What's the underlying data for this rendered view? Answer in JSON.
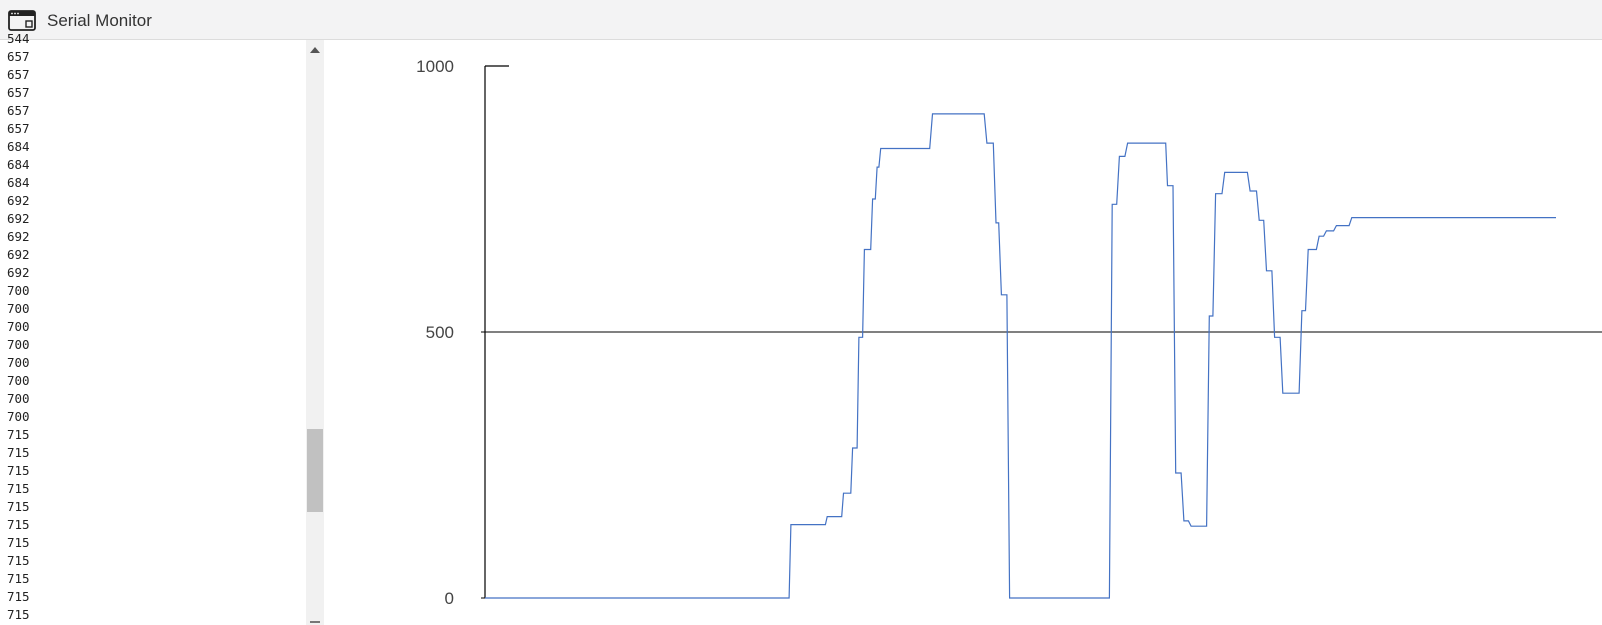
{
  "window": {
    "title": "Serial Monitor",
    "icon": "window-icon"
  },
  "serial_log": {
    "partial_top_line": "544",
    "lines": [
      "657",
      "657",
      "657",
      "657",
      "657",
      "684",
      "684",
      "684",
      "692",
      "692",
      "692",
      "692",
      "692",
      "700",
      "700",
      "700",
      "700",
      "700",
      "700",
      "700",
      "700",
      "715",
      "715",
      "715",
      "715",
      "715",
      "715",
      "715",
      "715",
      "715",
      "715",
      "715"
    ]
  },
  "plotter": {
    "y_ticks": [
      "0",
      "500",
      "1000"
    ],
    "line_color": "#4472c4",
    "axis_color": "#000000"
  },
  "chart_data": {
    "type": "line",
    "title": "",
    "xlabel": "",
    "ylabel": "",
    "ylim": [
      0,
      1000
    ],
    "y_ticks": [
      0,
      500,
      1000
    ],
    "grid": "horizontal line at 500",
    "x_unit": "sample index",
    "xlim": [
      0,
      1180
    ],
    "series": [
      {
        "points": [
          [
            0,
            0
          ],
          [
            335,
            0
          ],
          [
            337,
            138
          ],
          [
            375,
            138
          ],
          [
            377,
            153
          ],
          [
            393,
            153
          ],
          [
            395,
            197
          ],
          [
            403,
            197
          ],
          [
            405,
            282
          ],
          [
            410,
            282
          ],
          [
            412,
            490
          ],
          [
            416,
            490
          ],
          [
            418,
            655
          ],
          [
            425,
            655
          ],
          [
            427,
            750
          ],
          [
            430,
            750
          ],
          [
            432,
            810
          ],
          [
            434,
            810
          ],
          [
            436,
            845
          ],
          [
            490,
            845
          ],
          [
            493,
            910
          ],
          [
            550,
            910
          ],
          [
            553,
            855
          ],
          [
            560,
            855
          ],
          [
            563,
            705
          ],
          [
            566,
            705
          ],
          [
            569,
            570
          ],
          [
            575,
            570
          ],
          [
            578,
            0
          ],
          [
            688,
            0
          ],
          [
            691,
            740
          ],
          [
            696,
            740
          ],
          [
            699,
            830
          ],
          [
            705,
            830
          ],
          [
            708,
            855
          ],
          [
            750,
            855
          ],
          [
            752,
            775
          ],
          [
            758,
            775
          ],
          [
            761,
            235
          ],
          [
            767,
            235
          ],
          [
            770,
            145
          ],
          [
            775,
            145
          ],
          [
            778,
            135
          ],
          [
            795,
            135
          ],
          [
            798,
            530
          ],
          [
            802,
            530
          ],
          [
            805,
            760
          ],
          [
            812,
            760
          ],
          [
            815,
            800
          ],
          [
            840,
            800
          ],
          [
            843,
            765
          ],
          [
            850,
            765
          ],
          [
            853,
            710
          ],
          [
            858,
            710
          ],
          [
            861,
            615
          ],
          [
            867,
            615
          ],
          [
            870,
            490
          ],
          [
            876,
            490
          ],
          [
            879,
            385
          ],
          [
            897,
            385
          ],
          [
            900,
            540
          ],
          [
            904,
            540
          ],
          [
            907,
            655
          ],
          [
            916,
            655
          ],
          [
            919,
            680
          ],
          [
            924,
            680
          ],
          [
            927,
            690
          ],
          [
            935,
            690
          ],
          [
            938,
            700
          ],
          [
            952,
            700
          ],
          [
            955,
            715
          ],
          [
            1180,
            715
          ]
        ]
      }
    ]
  }
}
